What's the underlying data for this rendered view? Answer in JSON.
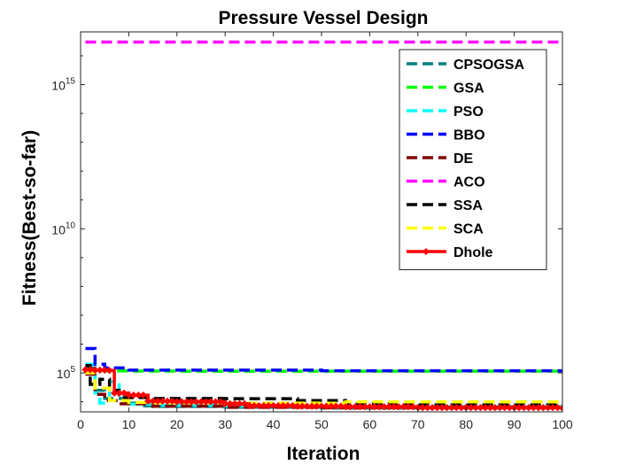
{
  "chart_data": {
    "type": "line",
    "title": "Pressure Vessel Design",
    "xlabel": "Iteration",
    "ylabel": "Fitness(Best-so-far)",
    "xlim": [
      0,
      100
    ],
    "ylim_log10": [
      3.65,
      16.83
    ],
    "yscale": "log",
    "grid": false,
    "legend_position": "top-right",
    "x_ticks": [
      0,
      10,
      20,
      30,
      40,
      50,
      60,
      70,
      80,
      90,
      100
    ],
    "y_ticks": [
      {
        "base": "10",
        "exp": "5",
        "value": 100000
      },
      {
        "base": "10",
        "exp": "10",
        "value": 10000000000
      },
      {
        "base": "10",
        "exp": "15",
        "value": 1000000000000000
      }
    ],
    "series": [
      {
        "name": "CPSOGSA",
        "color": "#008080",
        "dash": "dash",
        "marker": "none",
        "points": [
          [
            1,
            150000
          ],
          [
            3,
            25000
          ],
          [
            5,
            13000
          ],
          [
            10,
            9000
          ],
          [
            12,
            7200
          ],
          [
            15,
            6900
          ],
          [
            30,
            6500
          ],
          [
            50,
            6100
          ],
          [
            100,
            6090
          ]
        ]
      },
      {
        "name": "GSA",
        "color": "#00ff00",
        "dash": "dash",
        "marker": "none",
        "points": [
          [
            1,
            120000
          ],
          [
            5,
            118000
          ],
          [
            10,
            116000
          ],
          [
            20,
            115000
          ],
          [
            50,
            114500
          ],
          [
            100,
            114000
          ]
        ]
      },
      {
        "name": "PSO",
        "color": "#00ffff",
        "dash": "dash",
        "marker": "none",
        "points": [
          [
            1,
            200000
          ],
          [
            3,
            20000
          ],
          [
            4,
            9000
          ],
          [
            6,
            50000
          ],
          [
            8,
            16000
          ],
          [
            10,
            8200
          ],
          [
            15,
            7600
          ],
          [
            30,
            7200
          ],
          [
            50,
            6800
          ],
          [
            100,
            6200
          ]
        ]
      },
      {
        "name": "BBO",
        "color": "#0000ff",
        "dash": "dash",
        "marker": "none",
        "points": [
          [
            1,
            700000
          ],
          [
            3,
            200000
          ],
          [
            5,
            150000
          ],
          [
            10,
            125000
          ],
          [
            50,
            119000
          ],
          [
            100,
            117000
          ]
        ]
      },
      {
        "name": "DE",
        "color": "#800000",
        "dash": "dash",
        "marker": "none",
        "points": [
          [
            1,
            90000
          ],
          [
            3,
            18000
          ],
          [
            5,
            11000
          ],
          [
            8,
            8500
          ],
          [
            15,
            7000
          ],
          [
            30,
            6400
          ],
          [
            50,
            6200
          ],
          [
            100,
            6059
          ]
        ]
      },
      {
        "name": "ACO",
        "color": "#ff00ff",
        "dash": "dash",
        "marker": "none",
        "points": [
          [
            1,
            30000000000000000
          ],
          [
            100,
            30000000000000000
          ]
        ]
      },
      {
        "name": "SSA",
        "color": "#000000",
        "dash": "dash",
        "marker": "none",
        "points": [
          [
            1,
            180000
          ],
          [
            2,
            40000
          ],
          [
            4,
            60000
          ],
          [
            6,
            25000
          ],
          [
            8,
            14000
          ],
          [
            15,
            13000
          ],
          [
            30,
            12800
          ],
          [
            45,
            11000
          ],
          [
            55,
            8500
          ],
          [
            65,
            7800
          ],
          [
            100,
            7700
          ]
        ]
      },
      {
        "name": "SCA",
        "color": "#ffff00",
        "dash": "dash",
        "marker": "none",
        "points": [
          [
            1,
            100000
          ],
          [
            3,
            30000
          ],
          [
            6,
            11000
          ],
          [
            10,
            9500
          ],
          [
            15,
            9200
          ],
          [
            30,
            9000
          ],
          [
            50,
            8900
          ],
          [
            55,
            10000
          ],
          [
            100,
            10000
          ]
        ]
      },
      {
        "name": "Dhole",
        "color": "#ff0000",
        "dash": "solid",
        "marker": "diamond",
        "points": [
          [
            1,
            130000
          ],
          [
            3,
            125000
          ],
          [
            6,
            122000
          ],
          [
            7,
            20000
          ],
          [
            10,
            17000
          ],
          [
            13,
            17000
          ],
          [
            14,
            10500
          ],
          [
            20,
            10000
          ],
          [
            30,
            8500
          ],
          [
            35,
            7300
          ],
          [
            45,
            7000
          ],
          [
            55,
            6700
          ],
          [
            70,
            6300
          ],
          [
            100,
            6100
          ]
        ]
      }
    ]
  }
}
